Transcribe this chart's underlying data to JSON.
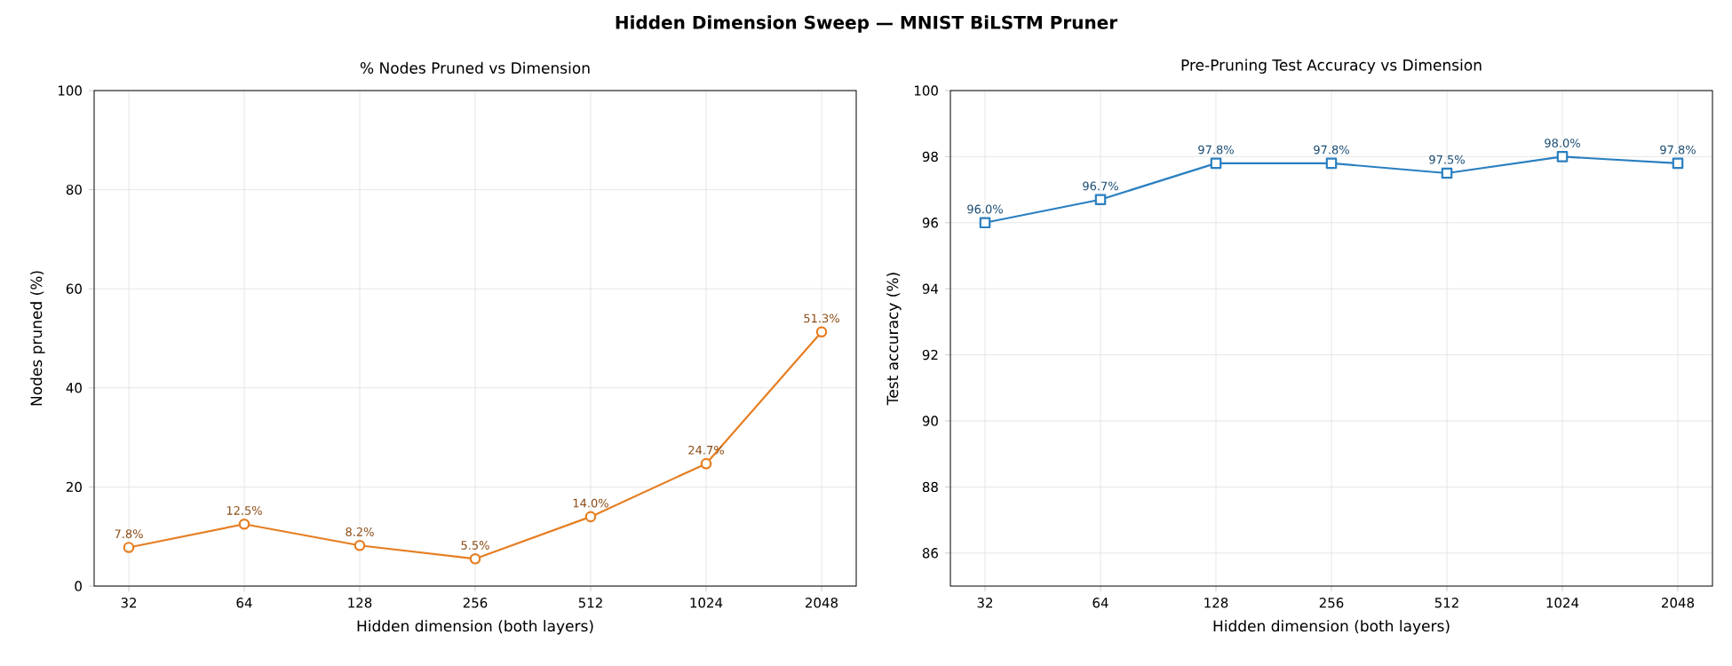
{
  "chart_data": [
    {
      "type": "line",
      "title": "Hidden Dimension Sweep — MNIST BiLSTM Pruner",
      "subtitle": "% Nodes Pruned vs Dimension",
      "xlabel": "Hidden dimension (both layers)",
      "ylabel": "Nodes pruned (%)",
      "categories": [
        "32",
        "64",
        "128",
        "256",
        "512",
        "1024",
        "2048"
      ],
      "values": [
        7.8,
        12.5,
        8.2,
        5.5,
        14.0,
        24.7,
        51.3
      ],
      "value_labels": [
        "7.8%",
        "12.5%",
        "8.2%",
        "5.5%",
        "14.0%",
        "24.7%",
        "51.3%"
      ],
      "color": "#e67e22",
      "ylim": [
        0,
        100
      ],
      "yticks": [
        0,
        20,
        40,
        60,
        80,
        100
      ],
      "grid": true,
      "marker": "circle",
      "line_style": "solid"
    },
    {
      "type": "line",
      "subtitle": "Pre-Pruning Test Accuracy vs Dimension",
      "xlabel": "Hidden dimension (both layers)",
      "ylabel": "Test accuracy (%)",
      "categories": [
        "32",
        "64",
        "128",
        "256",
        "512",
        "1024",
        "2048"
      ],
      "values": [
        96.0,
        96.7,
        97.8,
        97.8,
        97.5,
        98.0,
        97.8
      ],
      "value_labels": [
        "96.0%",
        "96.7%",
        "97.8%",
        "97.8%",
        "97.5%",
        "98.0%",
        "97.8%"
      ],
      "color": "#2a7fc0",
      "ylim": [
        85,
        100
      ],
      "yticks": [
        86,
        88,
        90,
        92,
        94,
        96,
        98,
        100
      ],
      "grid": true,
      "marker": "square",
      "line_style": "solid"
    }
  ]
}
